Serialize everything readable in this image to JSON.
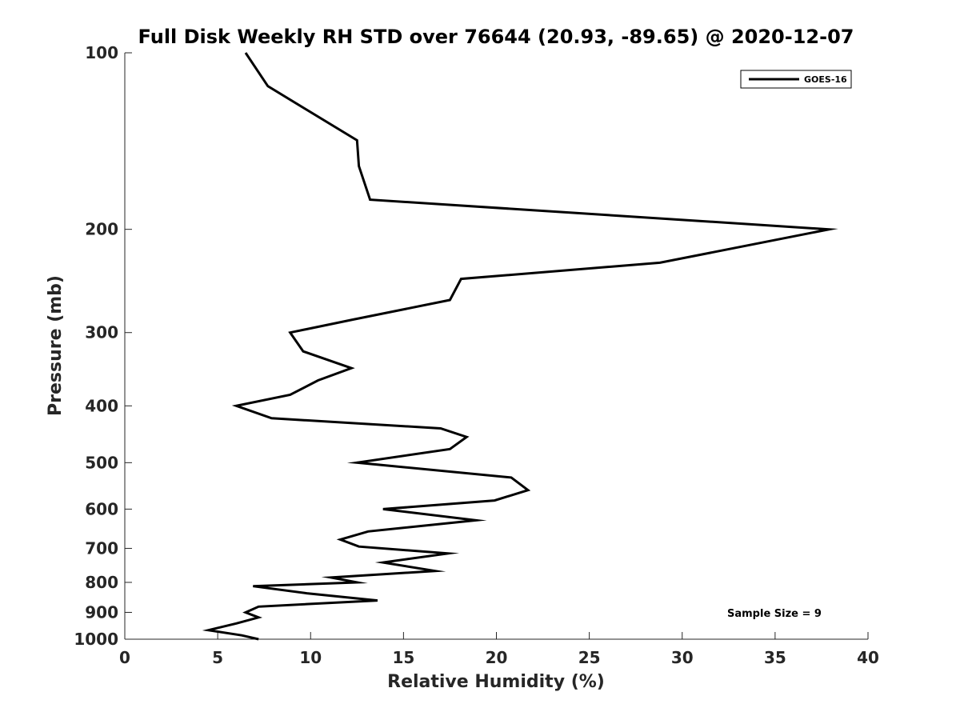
{
  "chart_data": {
    "type": "line",
    "title": "Full Disk Weekly RH STD over 76644 (20.93, -89.65) @ 2020-12-07",
    "xlabel": "Relative Humidity (%)",
    "ylabel": "Pressure (mb)",
    "xlim": [
      0,
      40
    ],
    "ylim": [
      100,
      1000
    ],
    "yscale": "log",
    "y_reversed": true,
    "grid": false,
    "x_ticks": [
      0,
      5,
      10,
      15,
      20,
      25,
      30,
      35,
      40
    ],
    "x_tick_labels": [
      "0",
      "5",
      "10",
      "15",
      "20",
      "25",
      "30",
      "35",
      "40"
    ],
    "y_ticks": [
      100,
      200,
      300,
      400,
      500,
      600,
      700,
      800,
      900,
      1000
    ],
    "y_tick_labels": [
      "100",
      "200",
      "300",
      "400",
      "500",
      "600",
      "700",
      "800",
      "900",
      "1000"
    ],
    "legend": {
      "position": "top-right",
      "entries": [
        "GOES-16"
      ]
    },
    "annotation": "Sample Size = 9",
    "series": [
      {
        "name": "GOES-16",
        "color": "#000000",
        "x": [
          6.5,
          7.7,
          12.5,
          12.6,
          13.2,
          37.9,
          28.8,
          18.1,
          17.5,
          12.3,
          8.9,
          9.6,
          12.2,
          10.4,
          8.9,
          6.0,
          7.9,
          17.0,
          18.4,
          17.5,
          12.5,
          20.8,
          21.7,
          19.9,
          13.9,
          18.9,
          13.1,
          11.6,
          12.6,
          17.4,
          13.9,
          16.7,
          11.1,
          12.5,
          6.9,
          9.8,
          13.6,
          7.2,
          6.5,
          7.2,
          6.0,
          4.5,
          6.3,
          7.2
        ],
        "y": [
          100,
          114,
          141,
          156,
          178,
          200,
          228,
          243,
          264,
          285,
          300,
          323,
          345,
          362,
          383,
          400,
          420,
          437,
          452,
          474,
          500,
          530,
          557,
          580,
          600,
          627,
          655,
          676,
          695,
          714,
          740,
          765,
          785,
          800,
          812,
          835,
          859,
          880,
          900,
          918,
          940,
          965,
          985,
          1000
        ]
      }
    ]
  }
}
